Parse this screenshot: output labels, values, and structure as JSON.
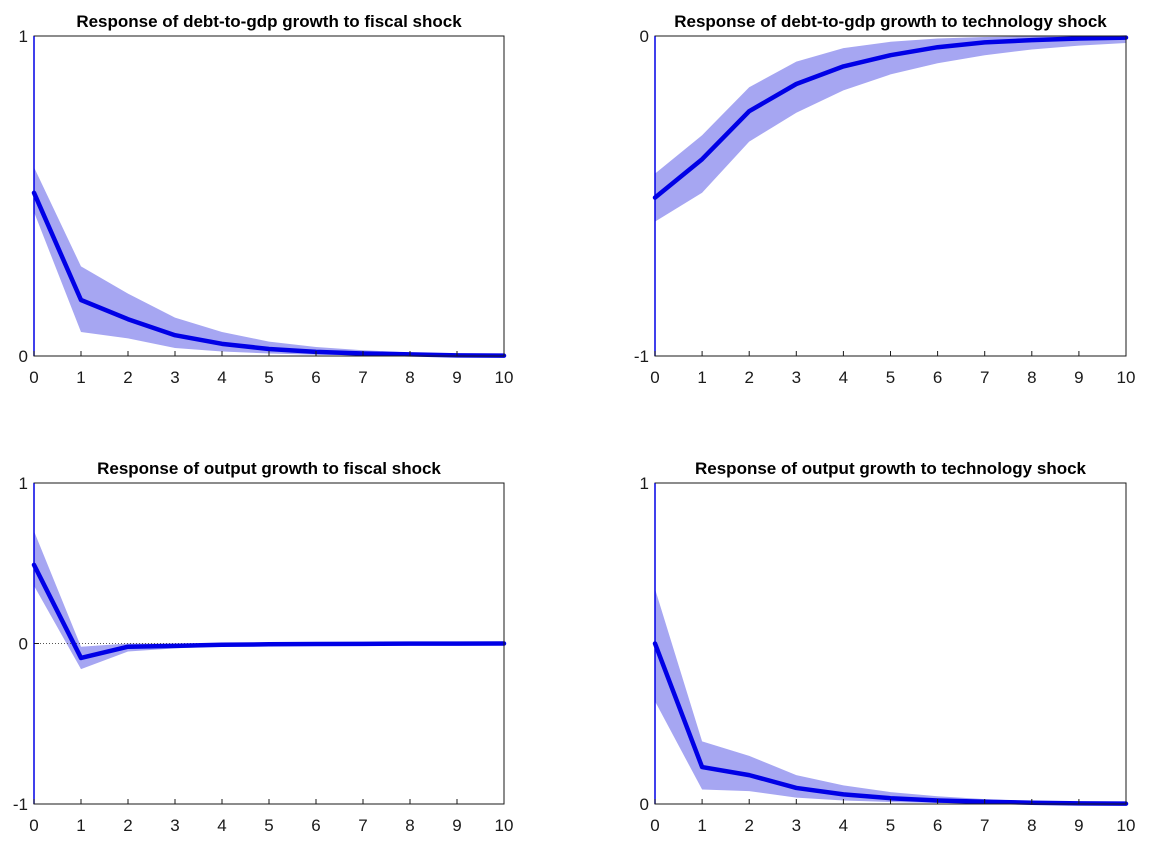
{
  "colors": {
    "line": "#0000e6",
    "band": "#a6a6f2",
    "axis": "#1a1a1a",
    "zero_line": "#555555",
    "background": "#ffffff"
  },
  "chart_data": [
    {
      "type": "line",
      "title": "Response of debt-to-gdp growth to fiscal shock",
      "xlabel": "",
      "ylabel": "",
      "xlim": [
        0,
        10
      ],
      "ylim": [
        0,
        1
      ],
      "x_ticks": [
        "0",
        "1",
        "2",
        "3",
        "4",
        "5",
        "6",
        "7",
        "8",
        "9",
        "10"
      ],
      "y_ticks": [
        "0",
        "1"
      ],
      "grid": false,
      "x": [
        0,
        1,
        2,
        3,
        4,
        5,
        6,
        7,
        8,
        9,
        10
      ],
      "series": [
        {
          "values": [
            0.51,
            0.175,
            0.115,
            0.065,
            0.038,
            0.022,
            0.013,
            0.008,
            0.005,
            0.002,
            0.001
          ],
          "lower": [
            0.45,
            0.075,
            0.055,
            0.025,
            0.014,
            0.008,
            0.004,
            0.002,
            0.001,
            0.0,
            0.0
          ],
          "upper": [
            0.59,
            0.28,
            0.195,
            0.12,
            0.075,
            0.045,
            0.028,
            0.018,
            0.011,
            0.006,
            0.004
          ]
        }
      ]
    },
    {
      "type": "line",
      "title": "Response of debt-to-gdp growth to technology shock",
      "xlabel": "",
      "ylabel": "",
      "xlim": [
        0,
        10
      ],
      "ylim": [
        -1,
        0
      ],
      "x_ticks": [
        "0",
        "1",
        "2",
        "3",
        "4",
        "5",
        "6",
        "7",
        "8",
        "9",
        "10"
      ],
      "y_ticks": [
        "-1",
        "0"
      ],
      "grid": false,
      "x": [
        0,
        1,
        2,
        3,
        4,
        5,
        6,
        7,
        8,
        9,
        10
      ],
      "series": [
        {
          "values": [
            -0.505,
            -0.385,
            -0.235,
            -0.15,
            -0.095,
            -0.06,
            -0.035,
            -0.02,
            -0.013,
            -0.008,
            -0.005
          ],
          "lower": [
            -0.58,
            -0.49,
            -0.33,
            -0.24,
            -0.17,
            -0.12,
            -0.085,
            -0.06,
            -0.042,
            -0.03,
            -0.022
          ],
          "upper": [
            -0.43,
            -0.31,
            -0.16,
            -0.08,
            -0.038,
            -0.018,
            -0.008,
            -0.003,
            -0.001,
            0.0,
            0.0
          ]
        }
      ]
    },
    {
      "type": "line",
      "title": "Response of output growth to fiscal shock",
      "xlabel": "",
      "ylabel": "",
      "xlim": [
        0,
        10
      ],
      "ylim": [
        -1,
        1
      ],
      "x_ticks": [
        "0",
        "1",
        "2",
        "3",
        "4",
        "5",
        "6",
        "7",
        "8",
        "9",
        "10"
      ],
      "y_ticks": [
        "-1",
        "0",
        "1"
      ],
      "grid": false,
      "x": [
        0,
        1,
        2,
        3,
        4,
        5,
        6,
        7,
        8,
        9,
        10
      ],
      "series": [
        {
          "values": [
            0.49,
            -0.09,
            -0.02,
            -0.015,
            -0.008,
            -0.005,
            -0.003,
            -0.002,
            -0.001,
            -0.001,
            0.0
          ],
          "lower": [
            0.36,
            -0.16,
            -0.05,
            -0.03,
            -0.018,
            -0.011,
            -0.007,
            -0.004,
            -0.003,
            -0.002,
            -0.001
          ],
          "upper": [
            0.7,
            -0.02,
            0.0,
            0.0,
            0.0,
            0.0,
            0.0,
            0.0,
            0.0,
            0.0,
            0.0
          ]
        }
      ]
    },
    {
      "type": "line",
      "title": "Response of output growth to technology shock",
      "xlabel": "",
      "ylabel": "",
      "xlim": [
        0,
        10
      ],
      "ylim": [
        0,
        1
      ],
      "x_ticks": [
        "0",
        "1",
        "2",
        "3",
        "4",
        "5",
        "6",
        "7",
        "8",
        "9",
        "10"
      ],
      "y_ticks": [
        "0",
        "1"
      ],
      "grid": false,
      "x": [
        0,
        1,
        2,
        3,
        4,
        5,
        6,
        7,
        8,
        9,
        10
      ],
      "series": [
        {
          "values": [
            0.5,
            0.115,
            0.09,
            0.05,
            0.03,
            0.018,
            0.011,
            0.007,
            0.004,
            0.002,
            0.001
          ],
          "lower": [
            0.32,
            0.045,
            0.04,
            0.02,
            0.011,
            0.006,
            0.003,
            0.002,
            0.001,
            0.0,
            0.0
          ],
          "upper": [
            0.67,
            0.195,
            0.15,
            0.09,
            0.058,
            0.037,
            0.024,
            0.015,
            0.009,
            0.005,
            0.003
          ]
        }
      ]
    }
  ]
}
